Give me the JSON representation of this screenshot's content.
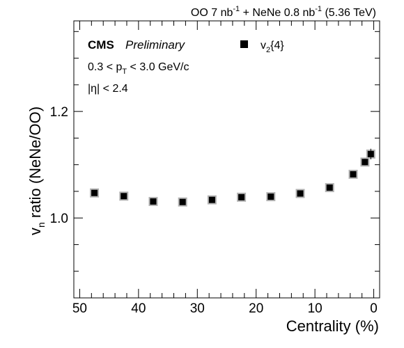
{
  "header": {
    "oo_prefix": "OO 7 nb",
    "oo_exp": "-1",
    "plus_nene": " + NeNe 0.8 nb",
    "nene_exp": "-1",
    "energy": " (5.36 TeV)"
  },
  "labels": {
    "cms": "CMS",
    "preliminary": "Preliminary",
    "pt_low": "0.3 < p",
    "pt_sub": "T",
    "pt_high": " < 3.0 GeV/c",
    "eta": "|η| < 2.4"
  },
  "legend": {
    "v_main": "v",
    "v_sub": "2",
    "v_tail": "{4}",
    "marker_color": "#000000"
  },
  "colors": {
    "marker": "#000000",
    "syst_box": "#b3b3b3"
  },
  "chart_data": {
    "type": "scatter",
    "title": "",
    "xlabel": "Centrality (%)",
    "ylabel_main": "v",
    "ylabel_sub": "n",
    "ylabel_tail": " ratio (NeNe/OO)",
    "xlim": [
      51,
      -1
    ],
    "ylim": [
      0.85,
      1.37
    ],
    "x_reversed": true,
    "x_ticks": [
      50,
      40,
      30,
      20,
      10,
      0
    ],
    "y_ticks": [
      1.0,
      1.2
    ],
    "y_tick_labels": [
      "1.0",
      "1.2"
    ],
    "series": [
      {
        "name": "v2{4}",
        "x": [
          47.5,
          42.5,
          37.5,
          32.5,
          27.5,
          22.5,
          17.5,
          12.5,
          7.5,
          3.5,
          1.5,
          0.5
        ],
        "y": [
          1.047,
          1.041,
          1.031,
          1.03,
          1.034,
          1.039,
          1.04,
          1.046,
          1.057,
          1.082,
          1.105,
          1.12
        ],
        "stat_err": [
          0.003,
          0.003,
          0.003,
          0.003,
          0.003,
          0.003,
          0.003,
          0.003,
          0.003,
          0.004,
          0.006,
          0.01
        ],
        "syst_err": [
          0.006,
          0.006,
          0.006,
          0.006,
          0.005,
          0.005,
          0.005,
          0.005,
          0.006,
          0.006,
          0.008,
          0.008
        ]
      }
    ]
  }
}
